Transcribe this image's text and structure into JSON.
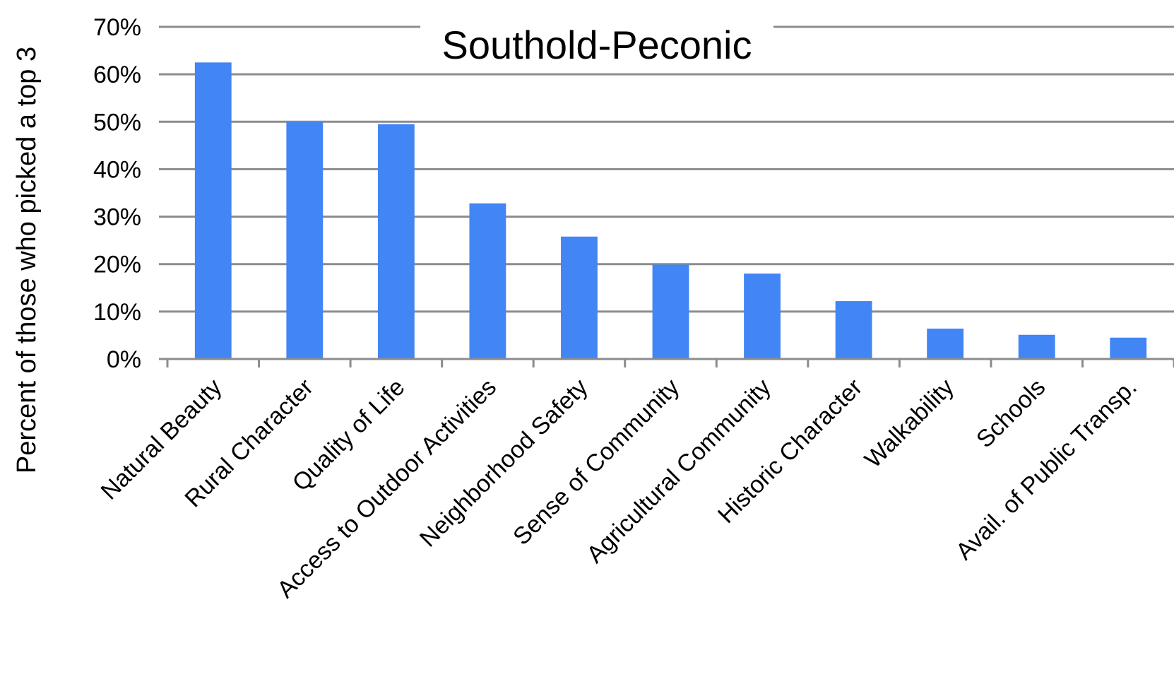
{
  "colors": {
    "bar": "#4285F4",
    "grid": "#8c8c8c",
    "axis": "#8c8c8c",
    "text": "#000000",
    "background": "#ffffff"
  },
  "chart_data": {
    "type": "bar",
    "title": "Southold-Peconic",
    "xlabel": "",
    "ylabel": "Percent of those who picked a top 3",
    "ylim": [
      0,
      70
    ],
    "y_ticks": [
      "0%",
      "10%",
      "20%",
      "30%",
      "40%",
      "50%",
      "60%",
      "70%"
    ],
    "grid": true,
    "legend": "none",
    "categories": [
      "Natural Beauty",
      "Rural Character",
      "Quality of Life",
      "Access to Outdoor Activities",
      "Neighborhood Safety",
      "Sense of Community",
      "Agricultural Community",
      "Historic Character",
      "Walkability",
      "Schools",
      "Avail. of Public Transp."
    ],
    "values": [
      62.5,
      50.0,
      49.5,
      32.8,
      25.8,
      19.9,
      18.0,
      12.2,
      6.4,
      5.1,
      4.5
    ]
  }
}
